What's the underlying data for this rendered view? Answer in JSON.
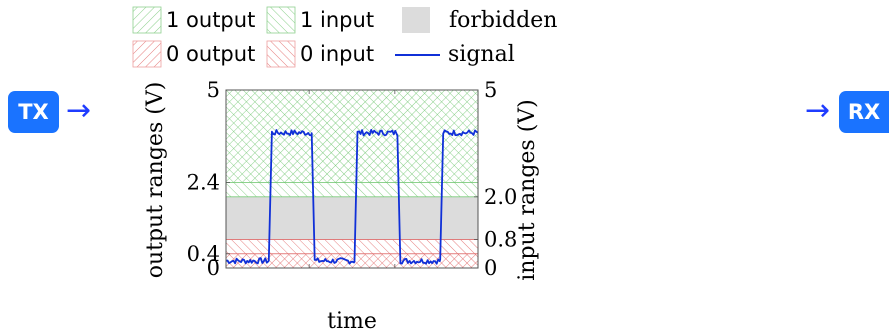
{
  "tx_label": "TX",
  "rx_label": "RX",
  "tx_arrow": "→",
  "rx_arrow": "→",
  "legend": {
    "one_output": "1 output",
    "one_input": "1 input",
    "forbidden": "forbidden",
    "zero_output": "0 output",
    "zero_input": "0 input",
    "signal": "signal"
  },
  "colors": {
    "output_one": "#5cb85c",
    "input_one": "#5cb85c",
    "output_zero": "#e06060",
    "input_zero": "#e06060",
    "forbidden": "#dcdcdc",
    "signal": "#1030d8",
    "badge": "#1a73ff"
  },
  "chart_data": {
    "type": "line",
    "xlabel": "time",
    "ylabel_left": "output ranges (V)",
    "ylabel_right": "input ranges (V)",
    "ylim": [
      0,
      5
    ],
    "left_ticks": [
      {
        "value": 5,
        "label": "5"
      },
      {
        "value": 2.4,
        "label": "2.4"
      },
      {
        "value": 0.4,
        "label": "0.4"
      },
      {
        "value": 0,
        "label": "0"
      }
    ],
    "right_ticks": [
      {
        "value": 5,
        "label": "5"
      },
      {
        "value": 2.0,
        "label": "2.0"
      },
      {
        "value": 0.8,
        "label": "0.8"
      },
      {
        "value": 0,
        "label": "0"
      }
    ],
    "bands": [
      {
        "name": "1 output",
        "from": 2.4,
        "to": 5
      },
      {
        "name": "1 input",
        "from": 2.0,
        "to": 5
      },
      {
        "name": "forbidden",
        "from": 0.8,
        "to": 2.0
      },
      {
        "name": "0 output",
        "from": 0,
        "to": 0.4
      },
      {
        "name": "0 input",
        "from": 0,
        "to": 0.8
      }
    ],
    "signal": {
      "low": 0.2,
      "high": 3.8,
      "transitions": [
        0.17,
        0.34,
        0.51,
        0.68,
        0.85
      ],
      "noise": 0.08
    }
  }
}
